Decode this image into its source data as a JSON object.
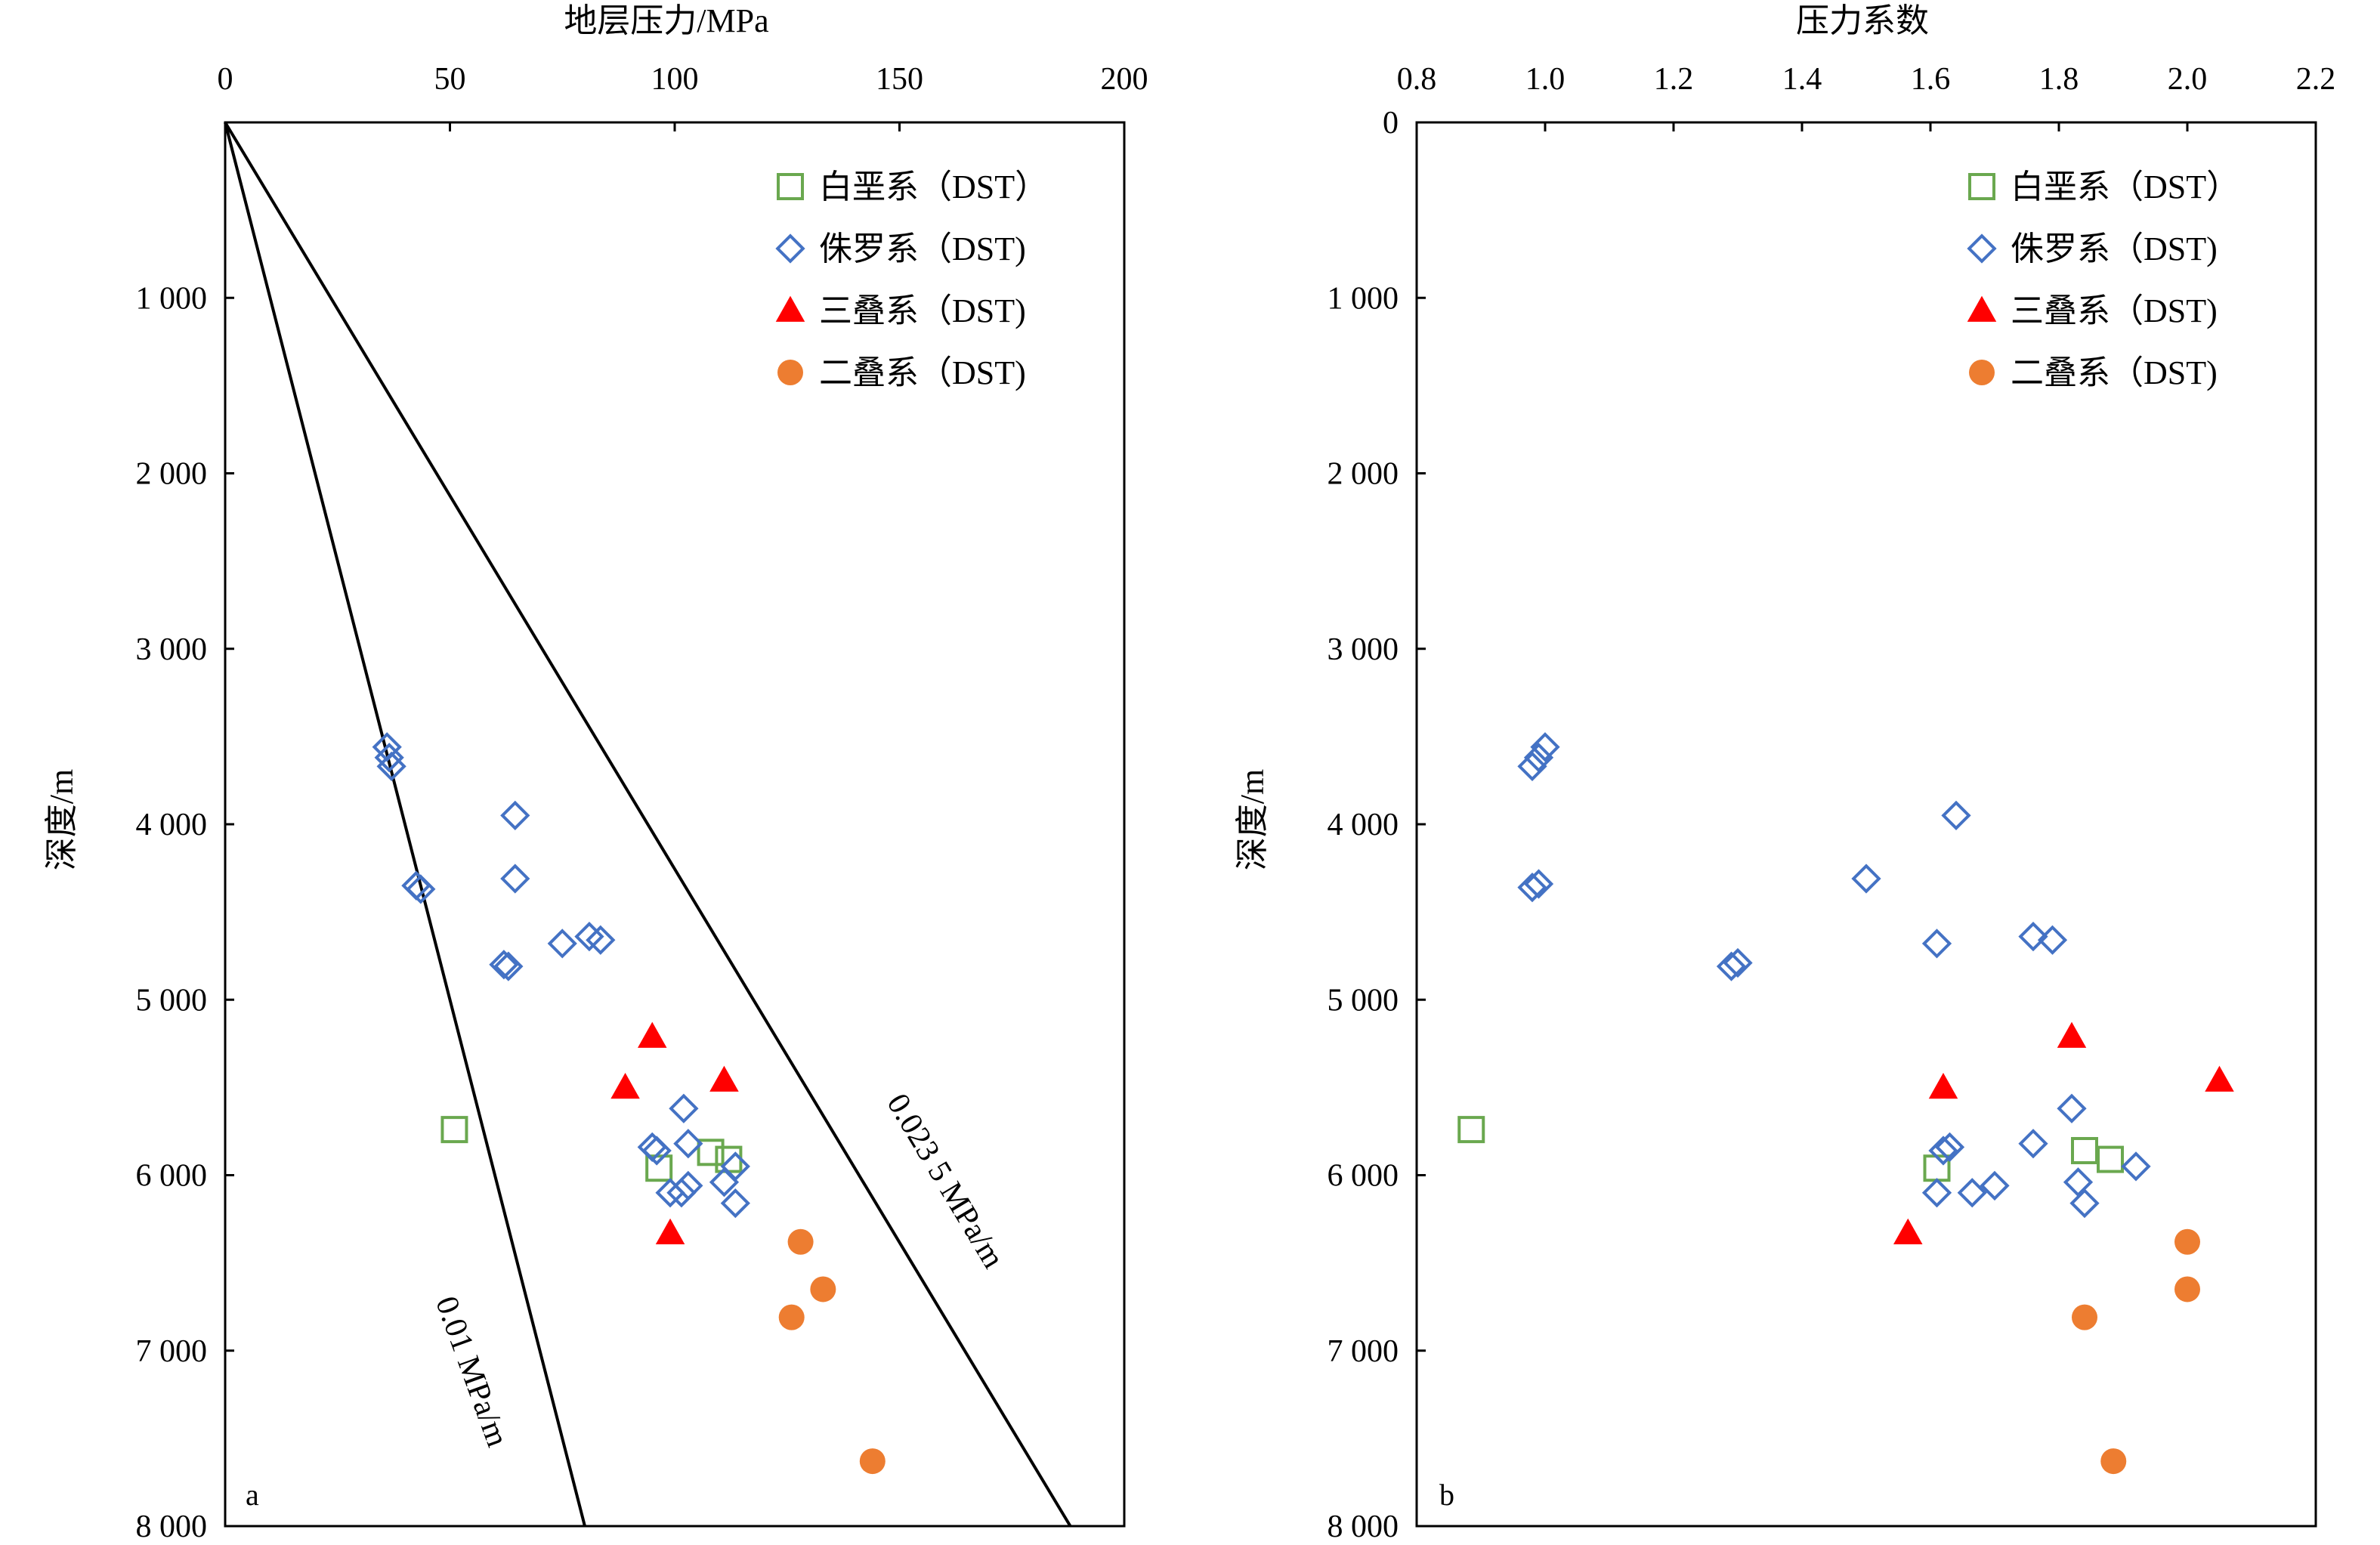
{
  "chart_data": [
    {
      "type": "scatter",
      "panel_label": "a",
      "xlabel": "地层压力/MPa",
      "ylabel": "深度/m",
      "xlim": [
        0,
        200
      ],
      "ylim": [
        0,
        8000
      ],
      "x_axis_position": "top",
      "y_inverted": true,
      "grid": false,
      "legend_position": "top-right",
      "x_ticks": [
        "0",
        "50",
        "100",
        "150",
        "200"
      ],
      "x_tick_values": [
        0,
        50,
        100,
        150,
        200
      ],
      "y_ticks": [
        "1 000",
        "2 000",
        "3 000",
        "4 000",
        "5 000",
        "6 000",
        "7 000",
        "8 000"
      ],
      "y_tick_values": [
        1000,
        2000,
        3000,
        4000,
        5000,
        6000,
        7000,
        8000
      ],
      "reference_lines": [
        {
          "label": "0.01 MPa/m",
          "gradient": 0.01
        },
        {
          "label": "0.023 5 MPa/m",
          "gradient": 0.0235
        }
      ],
      "series": [
        {
          "name": "白垩系（DST）",
          "marker": "square-open",
          "color": "#6aa84f",
          "points": [
            [
              51,
              5740
            ],
            [
              96.5,
              5960
            ],
            [
              108,
              5870
            ],
            [
              112,
              5910
            ]
          ]
        },
        {
          "name": "侏罗系（DST)",
          "marker": "diamond-open",
          "color": "#4472c4",
          "points": [
            [
              36,
              3560
            ],
            [
              36.5,
              3620
            ],
            [
              37,
              3670
            ],
            [
              64.5,
              3950
            ],
            [
              64.5,
              4310
            ],
            [
              42.5,
              4350
            ],
            [
              43.5,
              4370
            ],
            [
              75,
              4680
            ],
            [
              81,
              4640
            ],
            [
              83.5,
              4660
            ],
            [
              62,
              4800
            ],
            [
              63,
              4810
            ],
            [
              102,
              5620
            ],
            [
              95,
              5840
            ],
            [
              96,
              5860
            ],
            [
              103,
              5820
            ],
            [
              113.5,
              5950
            ],
            [
              111,
              6040
            ],
            [
              103,
              6060
            ],
            [
              99,
              6100
            ],
            [
              101.5,
              6100
            ],
            [
              113.5,
              6160
            ]
          ]
        },
        {
          "name": "三叠系（DST)",
          "marker": "triangle",
          "color": "#ff0000",
          "points": [
            [
              95,
              5210
            ],
            [
              89,
              5500
            ],
            [
              111,
              5460
            ],
            [
              99,
              6330
            ]
          ]
        },
        {
          "name": "二叠系（DST)",
          "marker": "circle",
          "color": "#ed7d31",
          "points": [
            [
              128,
              6380
            ],
            [
              133,
              6650
            ],
            [
              126,
              6810
            ],
            [
              144,
              7630
            ]
          ]
        }
      ]
    },
    {
      "type": "scatter",
      "panel_label": "b",
      "xlabel": "压力系数",
      "ylabel": "深度/m",
      "xlim": [
        0.8,
        2.2
      ],
      "ylim": [
        0,
        8000
      ],
      "x_axis_position": "top",
      "y_inverted": true,
      "grid": false,
      "legend_position": "top-right",
      "x_ticks": [
        "0.8",
        "1.0",
        "1.2",
        "1.4",
        "1.6",
        "1.8",
        "2.0",
        "2.2"
      ],
      "x_tick_values": [
        0.8,
        1.0,
        1.2,
        1.4,
        1.6,
        1.8,
        2.0,
        2.2
      ],
      "y_ticks": [
        "0",
        "1 000",
        "2 000",
        "3 000",
        "4 000",
        "5 000",
        "6 000",
        "7 000",
        "8 000"
      ],
      "y_tick_values": [
        0,
        1000,
        2000,
        3000,
        4000,
        5000,
        6000,
        7000,
        8000
      ],
      "series": [
        {
          "name": "白垩系（DST）",
          "marker": "square-open",
          "color": "#6aa84f",
          "points": [
            [
              0.885,
              5740
            ],
            [
              1.61,
              5960
            ],
            [
              1.84,
              5860
            ],
            [
              1.88,
              5910
            ]
          ]
        },
        {
          "name": "侏罗系（DST)",
          "marker": "diamond-open",
          "color": "#4472c4",
          "points": [
            [
              1.0,
              3560
            ],
            [
              0.99,
              3620
            ],
            [
              0.98,
              3670
            ],
            [
              1.64,
              3950
            ],
            [
              1.5,
              4310
            ],
            [
              0.98,
              4360
            ],
            [
              0.99,
              4340
            ],
            [
              1.61,
              4680
            ],
            [
              1.76,
              4640
            ],
            [
              1.79,
              4660
            ],
            [
              1.29,
              4810
            ],
            [
              1.3,
              4790
            ],
            [
              1.82,
              5620
            ],
            [
              1.62,
              5860
            ],
            [
              1.63,
              5840
            ],
            [
              1.76,
              5820
            ],
            [
              1.92,
              5950
            ],
            [
              1.83,
              6040
            ],
            [
              1.7,
              6060
            ],
            [
              1.665,
              6100
            ],
            [
              1.61,
              6100
            ],
            [
              1.84,
              6160
            ]
          ]
        },
        {
          "name": "三叠系（DST)",
          "marker": "triangle",
          "color": "#ff0000",
          "points": [
            [
              1.82,
              5210
            ],
            [
              1.62,
              5500
            ],
            [
              2.05,
              5460
            ],
            [
              1.565,
              6330
            ]
          ]
        },
        {
          "name": "二叠系（DST)",
          "marker": "circle",
          "color": "#ed7d31",
          "points": [
            [
              2.0,
              6380
            ],
            [
              2.0,
              6650
            ],
            [
              1.84,
              6810
            ],
            [
              1.885,
              7630
            ]
          ]
        }
      ]
    }
  ]
}
